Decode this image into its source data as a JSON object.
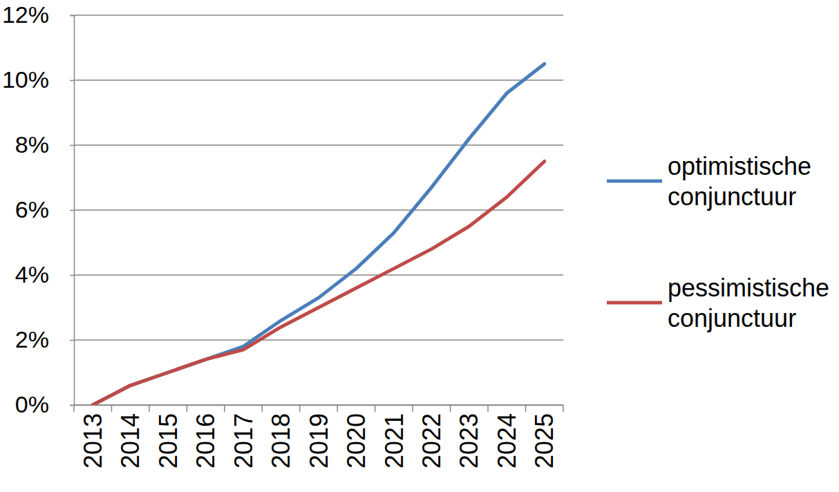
{
  "chart_data": {
    "type": "line",
    "categories": [
      "2013",
      "2014",
      "2015",
      "2016",
      "2017",
      "2018",
      "2019",
      "2020",
      "2021",
      "2022",
      "2023",
      "2024",
      "2025"
    ],
    "series": [
      {
        "name": "optimistische conjunctuur",
        "color": "#4a7ebb",
        "values": [
          0,
          0.6,
          1.0,
          1.4,
          1.8,
          2.6,
          3.3,
          4.2,
          5.3,
          6.7,
          8.2,
          9.6,
          10.5
        ]
      },
      {
        "name": "pessimistische conjunctuur",
        "color": "#be4b48",
        "values": [
          0,
          0.6,
          1.0,
          1.4,
          1.7,
          2.4,
          3.0,
          3.6,
          4.2,
          4.8,
          5.5,
          6.4,
          7.5
        ]
      }
    ],
    "ylim": [
      0,
      12
    ],
    "yticks": [
      {
        "value": 0,
        "label": "0%"
      },
      {
        "value": 2,
        "label": "2%"
      },
      {
        "value": 4,
        "label": "4%"
      },
      {
        "value": 6,
        "label": "6%"
      },
      {
        "value": 8,
        "label": "8%"
      },
      {
        "value": 10,
        "label": "10%"
      },
      {
        "value": 12,
        "label": "12%"
      }
    ],
    "grid": true,
    "legend": "right"
  }
}
